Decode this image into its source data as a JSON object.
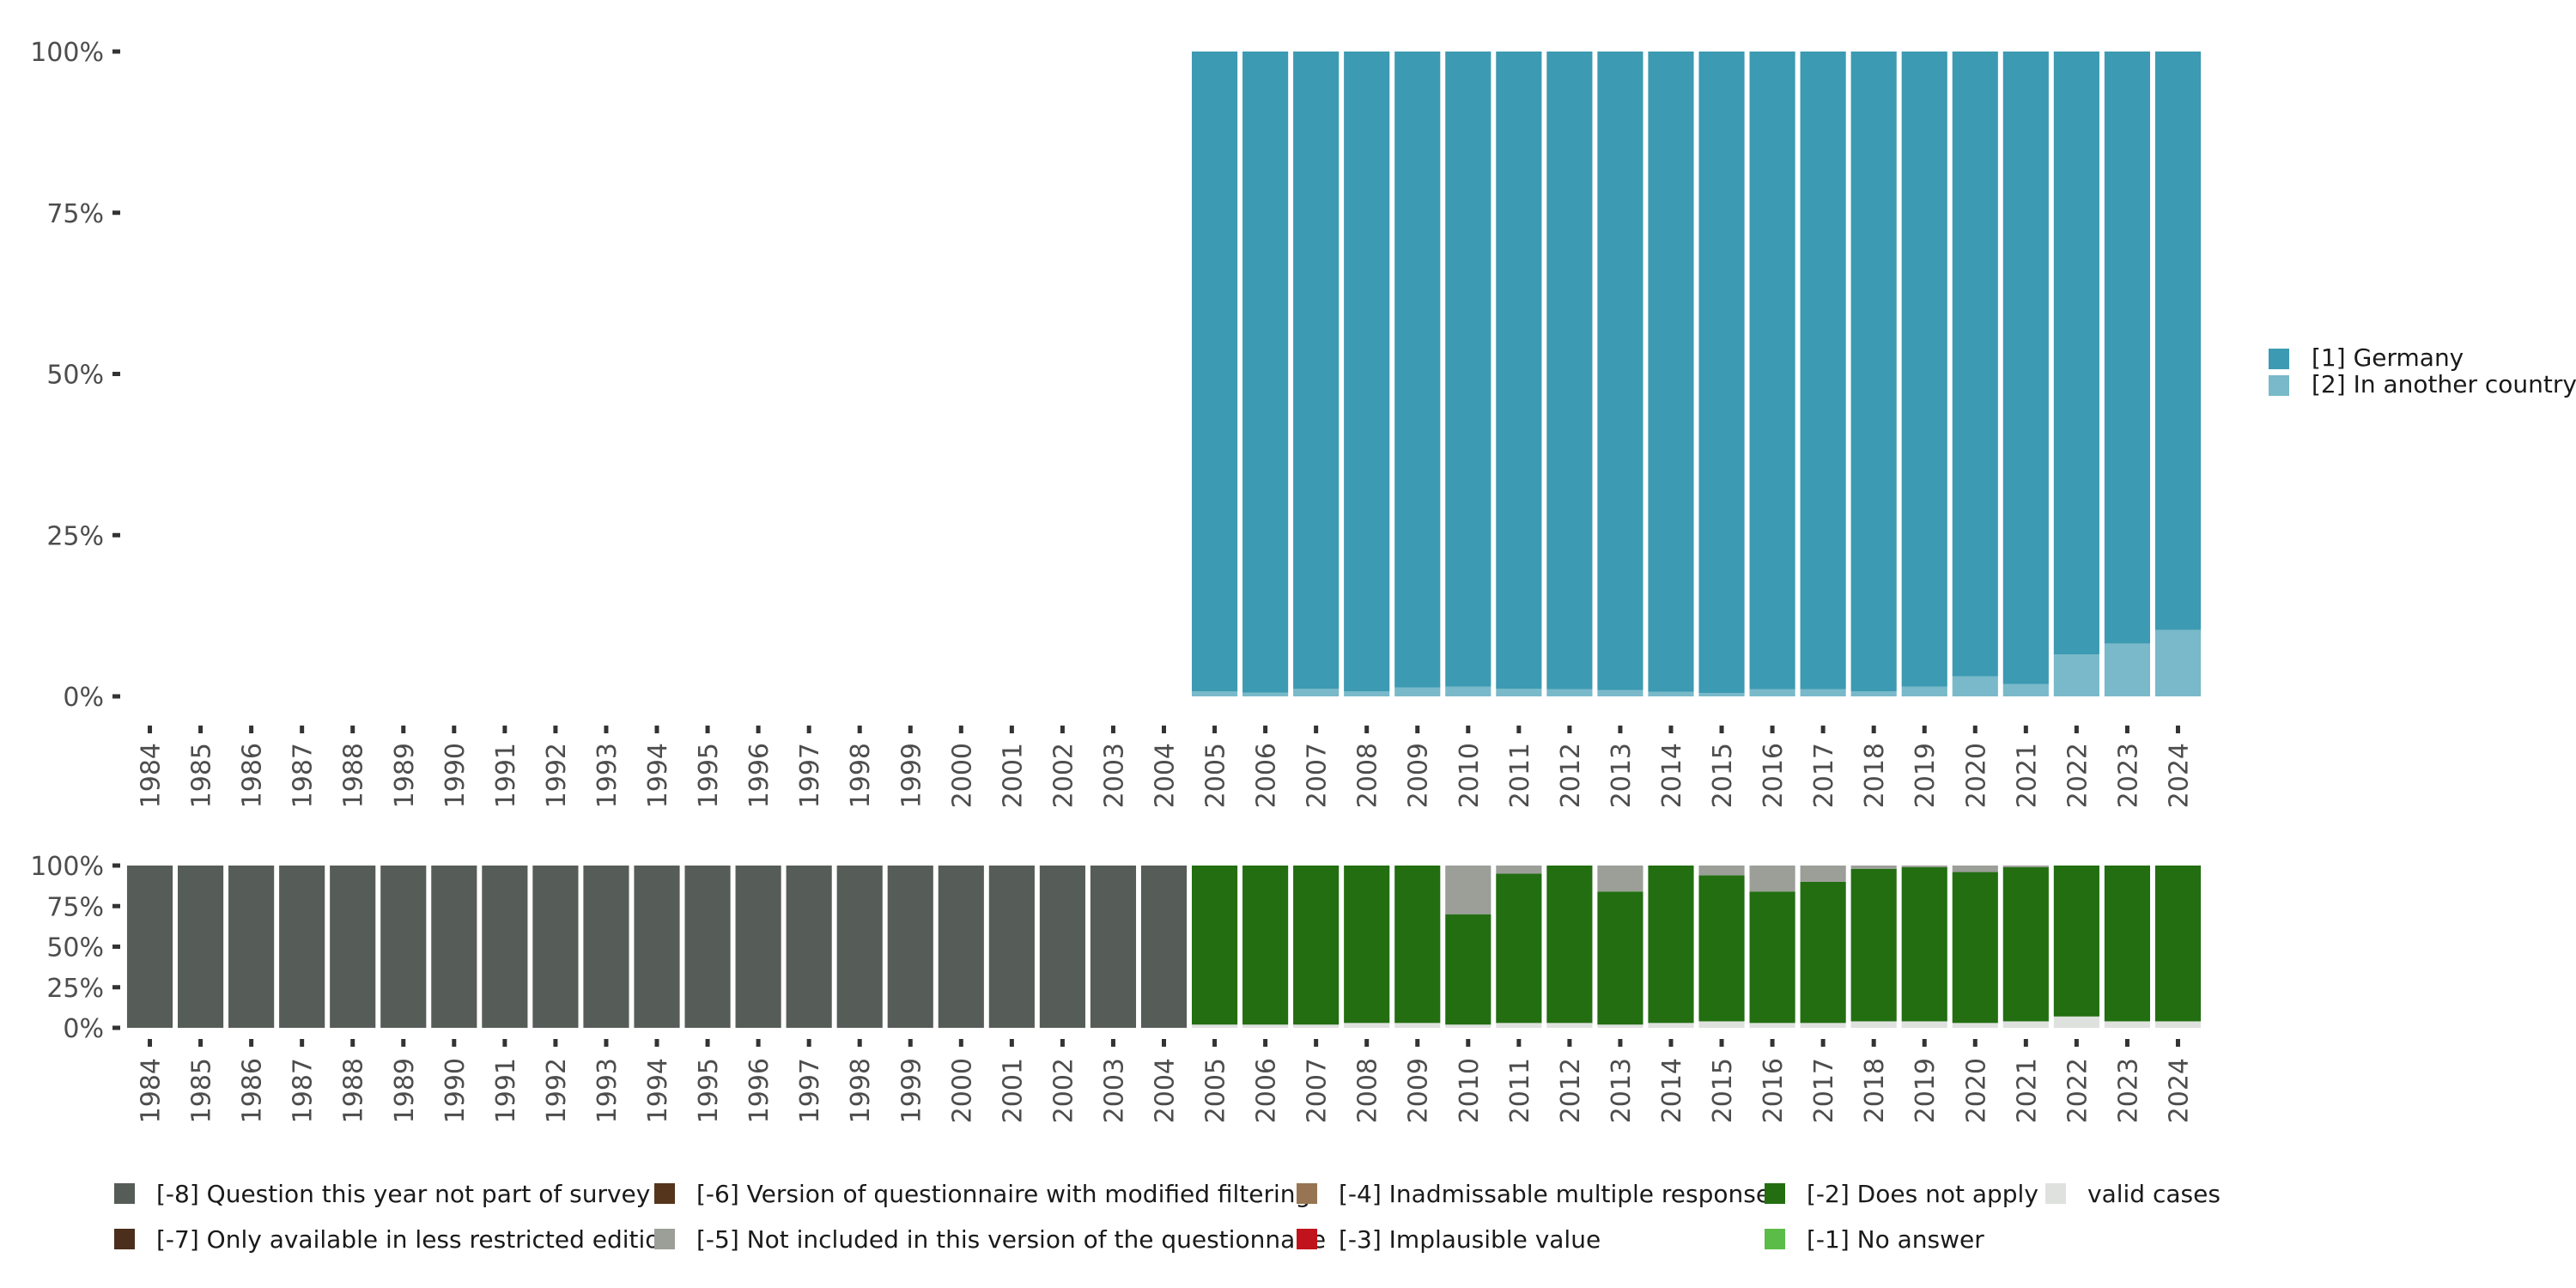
{
  "chart_data": [
    {
      "type": "bar",
      "stacked": true,
      "categories": [
        "1984",
        "1985",
        "1986",
        "1987",
        "1988",
        "1989",
        "1990",
        "1991",
        "1992",
        "1993",
        "1994",
        "1995",
        "1996",
        "1997",
        "1998",
        "1999",
        "2000",
        "2001",
        "2002",
        "2003",
        "2004",
        "2005",
        "2006",
        "2007",
        "2008",
        "2009",
        "2010",
        "2011",
        "2012",
        "2013",
        "2014",
        "2015",
        "2016",
        "2017",
        "2018",
        "2019",
        "2020",
        "2021",
        "2022",
        "2023",
        "2024"
      ],
      "ylim": [
        0,
        100
      ],
      "yticks": [
        "0%",
        "25%",
        "50%",
        "75%",
        "100%"
      ],
      "grid": false,
      "legend_position": "right",
      "series": [
        {
          "name": "[2] In another country",
          "color": "#79b9c9",
          "values": [
            null,
            null,
            null,
            null,
            null,
            null,
            null,
            null,
            null,
            null,
            null,
            null,
            null,
            null,
            null,
            null,
            null,
            null,
            null,
            null,
            null,
            0.8,
            0.6,
            1.2,
            0.8,
            1.4,
            1.5,
            1.2,
            1.1,
            1.0,
            0.7,
            0.5,
            1.1,
            1.1,
            0.8,
            1.5,
            3.1,
            1.9,
            6.5,
            8.2,
            10.3
          ]
        },
        {
          "name": "[1] Germany",
          "color": "#3c9ab2",
          "values": [
            null,
            null,
            null,
            null,
            null,
            null,
            null,
            null,
            null,
            null,
            null,
            null,
            null,
            null,
            null,
            null,
            null,
            null,
            null,
            null,
            null,
            99.2,
            99.4,
            98.8,
            99.2,
            98.6,
            98.5,
            98.8,
            98.9,
            99.0,
            99.3,
            99.5,
            98.9,
            98.9,
            99.2,
            98.5,
            96.9,
            98.1,
            93.5,
            91.8,
            89.7
          ]
        }
      ]
    },
    {
      "type": "bar",
      "stacked": true,
      "categories": [
        "1984",
        "1985",
        "1986",
        "1987",
        "1988",
        "1989",
        "1990",
        "1991",
        "1992",
        "1993",
        "1994",
        "1995",
        "1996",
        "1997",
        "1998",
        "1999",
        "2000",
        "2001",
        "2002",
        "2003",
        "2004",
        "2005",
        "2006",
        "2007",
        "2008",
        "2009",
        "2010",
        "2011",
        "2012",
        "2013",
        "2014",
        "2015",
        "2016",
        "2017",
        "2018",
        "2019",
        "2020",
        "2021",
        "2022",
        "2023",
        "2024"
      ],
      "ylim": [
        0,
        100
      ],
      "yticks": [
        "0%",
        "25%",
        "50%",
        "75%",
        "100%"
      ],
      "grid": false,
      "legend_position": "bottom",
      "series": [
        {
          "name": "valid cases",
          "color": "#dfe1df",
          "values": [
            0,
            0,
            0,
            0,
            0,
            0,
            0,
            0,
            0,
            0,
            0,
            0,
            0,
            0,
            0,
            0,
            0,
            0,
            0,
            0,
            0,
            2,
            2,
            2,
            3,
            3,
            2,
            3,
            3,
            2,
            3,
            4,
            3,
            3,
            4,
            4,
            3,
            4,
            7,
            4,
            4
          ]
        },
        {
          "name": "[-2] Does not apply",
          "color": "#226e11",
          "values": [
            0,
            0,
            0,
            0,
            0,
            0,
            0,
            0,
            0,
            0,
            0,
            0,
            0,
            0,
            0,
            0,
            0,
            0,
            0,
            0,
            0,
            98,
            98,
            98,
            97,
            97,
            68,
            92,
            97,
            82,
            97,
            90,
            81,
            87,
            94,
            95,
            93,
            95,
            93,
            96,
            96
          ]
        },
        {
          "name": "[-5] Not included in this version of the questionnaire",
          "color": "#9c9e98",
          "values": [
            0,
            0,
            0,
            0,
            0,
            0,
            0,
            0,
            0,
            0,
            0,
            0,
            0,
            0,
            0,
            0,
            0,
            0,
            0,
            0,
            0,
            0,
            0,
            0,
            0,
            0,
            30,
            5,
            0,
            16,
            0,
            6,
            16,
            10,
            2,
            1,
            4,
            1,
            0,
            0,
            0
          ]
        },
        {
          "name": "[-8] Question this year not part of survey",
          "color": "#565c57",
          "values": [
            100,
            100,
            100,
            100,
            100,
            100,
            100,
            100,
            100,
            100,
            100,
            100,
            100,
            100,
            100,
            100,
            100,
            100,
            100,
            100,
            100,
            0,
            0,
            0,
            0,
            0,
            0,
            0,
            0,
            0,
            0,
            0,
            0,
            0,
            0,
            0,
            0,
            0,
            0,
            0,
            0
          ]
        }
      ]
    }
  ],
  "legend_top": [
    {
      "label": "[1] Germany",
      "color": "#3c9ab2"
    },
    {
      "label": "[2] In another country",
      "color": "#79b9c9"
    }
  ],
  "legend_bottom": [
    {
      "label": "[-8] Question this year not part of survey",
      "color": "#565c57"
    },
    {
      "label": "[-7] Only available in less restricted edition",
      "color": "#4b2e1b"
    },
    {
      "label": "[-6] Version of questionnaire with modified filtering",
      "color": "#56351d"
    },
    {
      "label": "[-5] Not included in this version of the questionnaire",
      "color": "#9c9e98"
    },
    {
      "label": "[-4] Inadmissable multiple response",
      "color": "#977552"
    },
    {
      "label": "[-3] Implausible value",
      "color": "#c1131b"
    },
    {
      "label": "[-2] Does not apply",
      "color": "#226e11"
    },
    {
      "label": "[-1] No answer",
      "color": "#5bbc47"
    },
    {
      "label": "valid cases",
      "color": "#dfe1df"
    }
  ]
}
